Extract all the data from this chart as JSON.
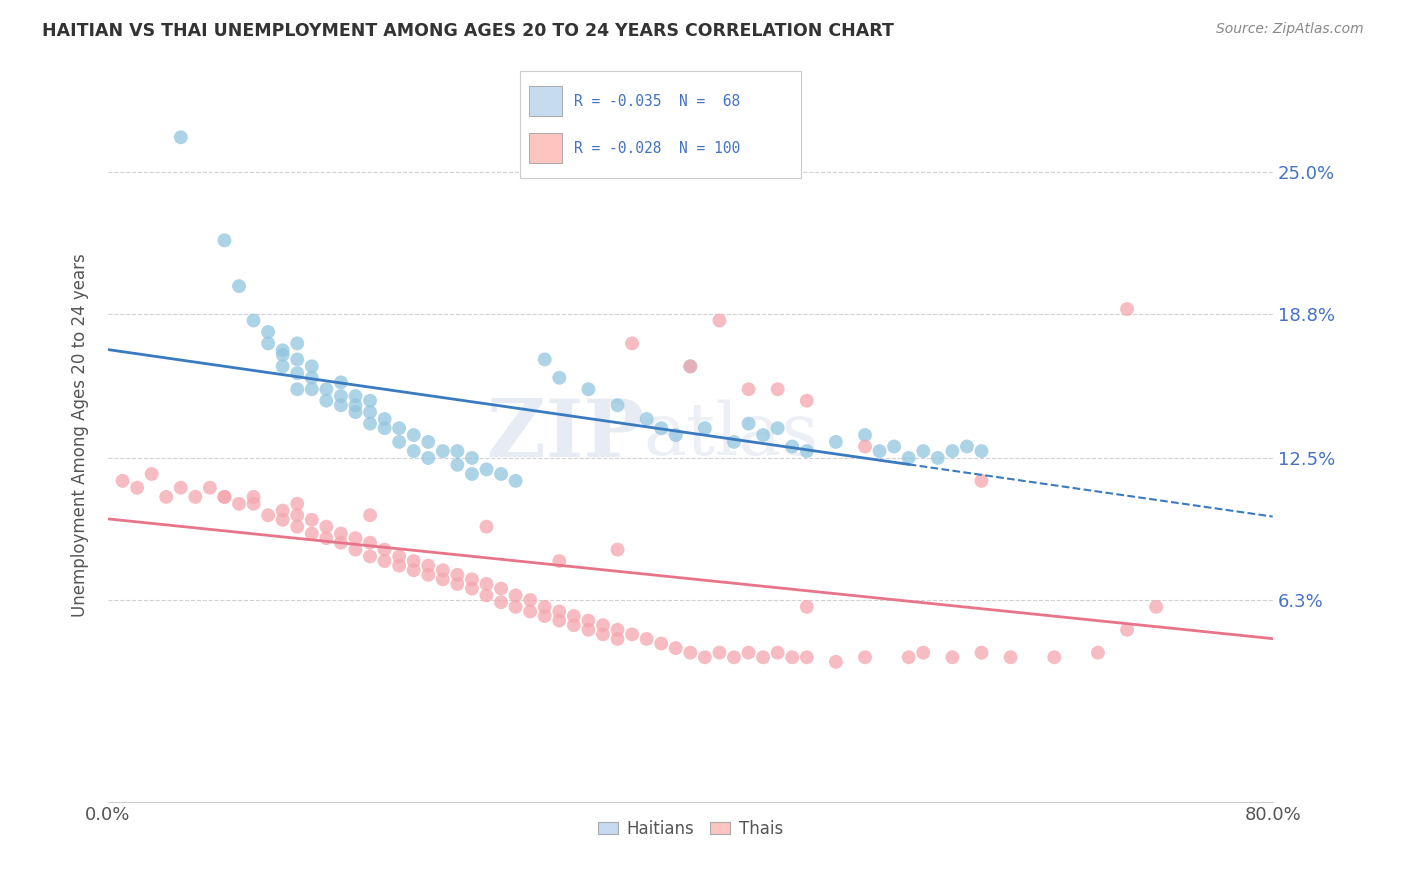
{
  "title": "HAITIAN VS THAI UNEMPLOYMENT AMONG AGES 20 TO 24 YEARS CORRELATION CHART",
  "source": "Source: ZipAtlas.com",
  "ylabel": "Unemployment Among Ages 20 to 24 years",
  "xlim": [
    0.0,
    0.8
  ],
  "ylim": [
    -0.025,
    0.295
  ],
  "xticks": [
    0.0,
    0.2,
    0.4,
    0.6,
    0.8
  ],
  "xticklabels": [
    "0.0%",
    "",
    "",
    "",
    "80.0%"
  ],
  "ytick_positions": [
    0.063,
    0.125,
    0.188,
    0.25
  ],
  "ytick_labels": [
    "6.3%",
    "12.5%",
    "18.8%",
    "25.0%"
  ],
  "color_haitian": "#92c5de",
  "color_thai": "#f4a6ad",
  "color_haitian_light": "#c6dbef",
  "color_thai_light": "#fcc5c0",
  "trendline_haitian_solid_color": "#3a7abf",
  "trendline_thai_color": "#e8748a",
  "watermark": "ZIPatlas",
  "haitian_x": [
    0.05,
    0.08,
    0.09,
    0.1,
    0.11,
    0.11,
    0.12,
    0.12,
    0.12,
    0.13,
    0.13,
    0.13,
    0.13,
    0.14,
    0.14,
    0.14,
    0.15,
    0.15,
    0.16,
    0.16,
    0.16,
    0.17,
    0.17,
    0.17,
    0.18,
    0.18,
    0.18,
    0.19,
    0.19,
    0.2,
    0.2,
    0.21,
    0.21,
    0.22,
    0.22,
    0.23,
    0.24,
    0.24,
    0.25,
    0.25,
    0.26,
    0.27,
    0.28,
    0.3,
    0.31,
    0.33,
    0.35,
    0.37,
    0.38,
    0.39,
    0.4,
    0.41,
    0.43,
    0.44,
    0.45,
    0.46,
    0.47,
    0.48,
    0.5,
    0.52,
    0.53,
    0.54,
    0.55,
    0.56,
    0.57,
    0.58,
    0.59,
    0.6
  ],
  "haitian_y": [
    0.265,
    0.22,
    0.2,
    0.185,
    0.18,
    0.175,
    0.165,
    0.17,
    0.172,
    0.162,
    0.168,
    0.175,
    0.155,
    0.155,
    0.16,
    0.165,
    0.15,
    0.155,
    0.148,
    0.152,
    0.158,
    0.145,
    0.148,
    0.152,
    0.14,
    0.145,
    0.15,
    0.138,
    0.142,
    0.132,
    0.138,
    0.128,
    0.135,
    0.125,
    0.132,
    0.128,
    0.122,
    0.128,
    0.118,
    0.125,
    0.12,
    0.118,
    0.115,
    0.168,
    0.16,
    0.155,
    0.148,
    0.142,
    0.138,
    0.135,
    0.165,
    0.138,
    0.132,
    0.14,
    0.135,
    0.138,
    0.13,
    0.128,
    0.132,
    0.135,
    0.128,
    0.13,
    0.125,
    0.128,
    0.125,
    0.128,
    0.13,
    0.128
  ],
  "thai_x": [
    0.01,
    0.02,
    0.03,
    0.04,
    0.05,
    0.06,
    0.07,
    0.08,
    0.09,
    0.1,
    0.1,
    0.11,
    0.12,
    0.12,
    0.13,
    0.13,
    0.14,
    0.14,
    0.15,
    0.15,
    0.16,
    0.16,
    0.17,
    0.17,
    0.18,
    0.18,
    0.19,
    0.19,
    0.2,
    0.2,
    0.21,
    0.21,
    0.22,
    0.22,
    0.23,
    0.23,
    0.24,
    0.24,
    0.25,
    0.25,
    0.26,
    0.26,
    0.27,
    0.27,
    0.28,
    0.28,
    0.29,
    0.29,
    0.3,
    0.3,
    0.31,
    0.31,
    0.32,
    0.32,
    0.33,
    0.33,
    0.34,
    0.34,
    0.35,
    0.35,
    0.36,
    0.37,
    0.38,
    0.39,
    0.4,
    0.41,
    0.42,
    0.43,
    0.44,
    0.45,
    0.46,
    0.47,
    0.48,
    0.5,
    0.52,
    0.55,
    0.56,
    0.58,
    0.6,
    0.62,
    0.65,
    0.68,
    0.7,
    0.72,
    0.31,
    0.36,
    0.4,
    0.42,
    0.44,
    0.46,
    0.48,
    0.52,
    0.6,
    0.7,
    0.48,
    0.35,
    0.26,
    0.18,
    0.13,
    0.08
  ],
  "thai_y": [
    0.115,
    0.112,
    0.118,
    0.108,
    0.112,
    0.108,
    0.112,
    0.108,
    0.105,
    0.108,
    0.105,
    0.1,
    0.098,
    0.102,
    0.095,
    0.1,
    0.092,
    0.098,
    0.09,
    0.095,
    0.088,
    0.092,
    0.085,
    0.09,
    0.082,
    0.088,
    0.08,
    0.085,
    0.078,
    0.082,
    0.076,
    0.08,
    0.074,
    0.078,
    0.072,
    0.076,
    0.07,
    0.074,
    0.068,
    0.072,
    0.065,
    0.07,
    0.062,
    0.068,
    0.06,
    0.065,
    0.058,
    0.063,
    0.056,
    0.06,
    0.054,
    0.058,
    0.052,
    0.056,
    0.05,
    0.054,
    0.048,
    0.052,
    0.046,
    0.05,
    0.048,
    0.046,
    0.044,
    0.042,
    0.04,
    0.038,
    0.04,
    0.038,
    0.04,
    0.038,
    0.04,
    0.038,
    0.038,
    0.036,
    0.038,
    0.038,
    0.04,
    0.038,
    0.04,
    0.038,
    0.038,
    0.04,
    0.05,
    0.06,
    0.08,
    0.175,
    0.165,
    0.185,
    0.155,
    0.155,
    0.15,
    0.13,
    0.115,
    0.19,
    0.06,
    0.085,
    0.095,
    0.1,
    0.105,
    0.108
  ]
}
